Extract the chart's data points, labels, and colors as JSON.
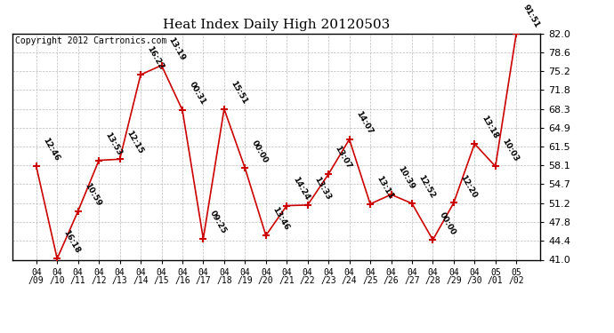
{
  "title": "Heat Index Daily High 20120503",
  "copyright": "Copyright 2012 Cartronics.com",
  "dates": [
    "04/09",
    "04/10",
    "04/11",
    "04/12",
    "04/13",
    "04/14",
    "04/15",
    "04/16",
    "04/17",
    "04/18",
    "04/19",
    "04/20",
    "04/21",
    "04/22",
    "04/23",
    "04/24",
    "04/25",
    "04/26",
    "04/27",
    "04/28",
    "04/29",
    "04/30",
    "05/01",
    "05/02"
  ],
  "dates_fmt": [
    "04\n/09",
    "04\n/10",
    "04\n/11",
    "04\n/12",
    "04\n/13",
    "04\n/14",
    "04\n/15",
    "04\n/16",
    "04\n/17",
    "04\n/18",
    "04\n/19",
    "04\n/20",
    "04\n/21",
    "04\n/22",
    "04\n/23",
    "04\n/24",
    "04\n/25",
    "04\n/26",
    "04\n/27",
    "04\n/28",
    "04\n/29",
    "04\n/30",
    "05\n/01",
    "05\n/02"
  ],
  "values": [
    57.9,
    41.2,
    49.8,
    59.0,
    59.2,
    74.5,
    76.2,
    68.1,
    44.8,
    68.3,
    57.6,
    45.4,
    50.8,
    50.9,
    56.5,
    62.8,
    51.1,
    52.8,
    51.2,
    44.6,
    51.3,
    62.0,
    57.9,
    82.0
  ],
  "labels": [
    "12:46",
    "16:18",
    "10:59",
    "13:53",
    "12:15",
    "16:22",
    "13:19",
    "00:31",
    "09:25",
    "15:51",
    "00:00",
    "13:46",
    "14:24",
    "13:33",
    "13:07",
    "14:07",
    "13:11",
    "10:39",
    "12:52",
    "00:00",
    "12:20",
    "13:18",
    "10:03",
    "91:51"
  ],
  "ylim": [
    41.0,
    82.0
  ],
  "yticks": [
    41.0,
    44.4,
    47.8,
    51.2,
    54.7,
    58.1,
    61.5,
    64.9,
    68.3,
    71.8,
    75.2,
    78.6,
    82.0
  ],
  "line_color": "#cc0000",
  "bg_color": "#ffffff",
  "grid_color": "#bbbbbb",
  "title_fontsize": 11,
  "label_fontsize": 6.5,
  "copyright_fontsize": 7,
  "xtick_fontsize": 7,
  "ytick_fontsize": 8
}
